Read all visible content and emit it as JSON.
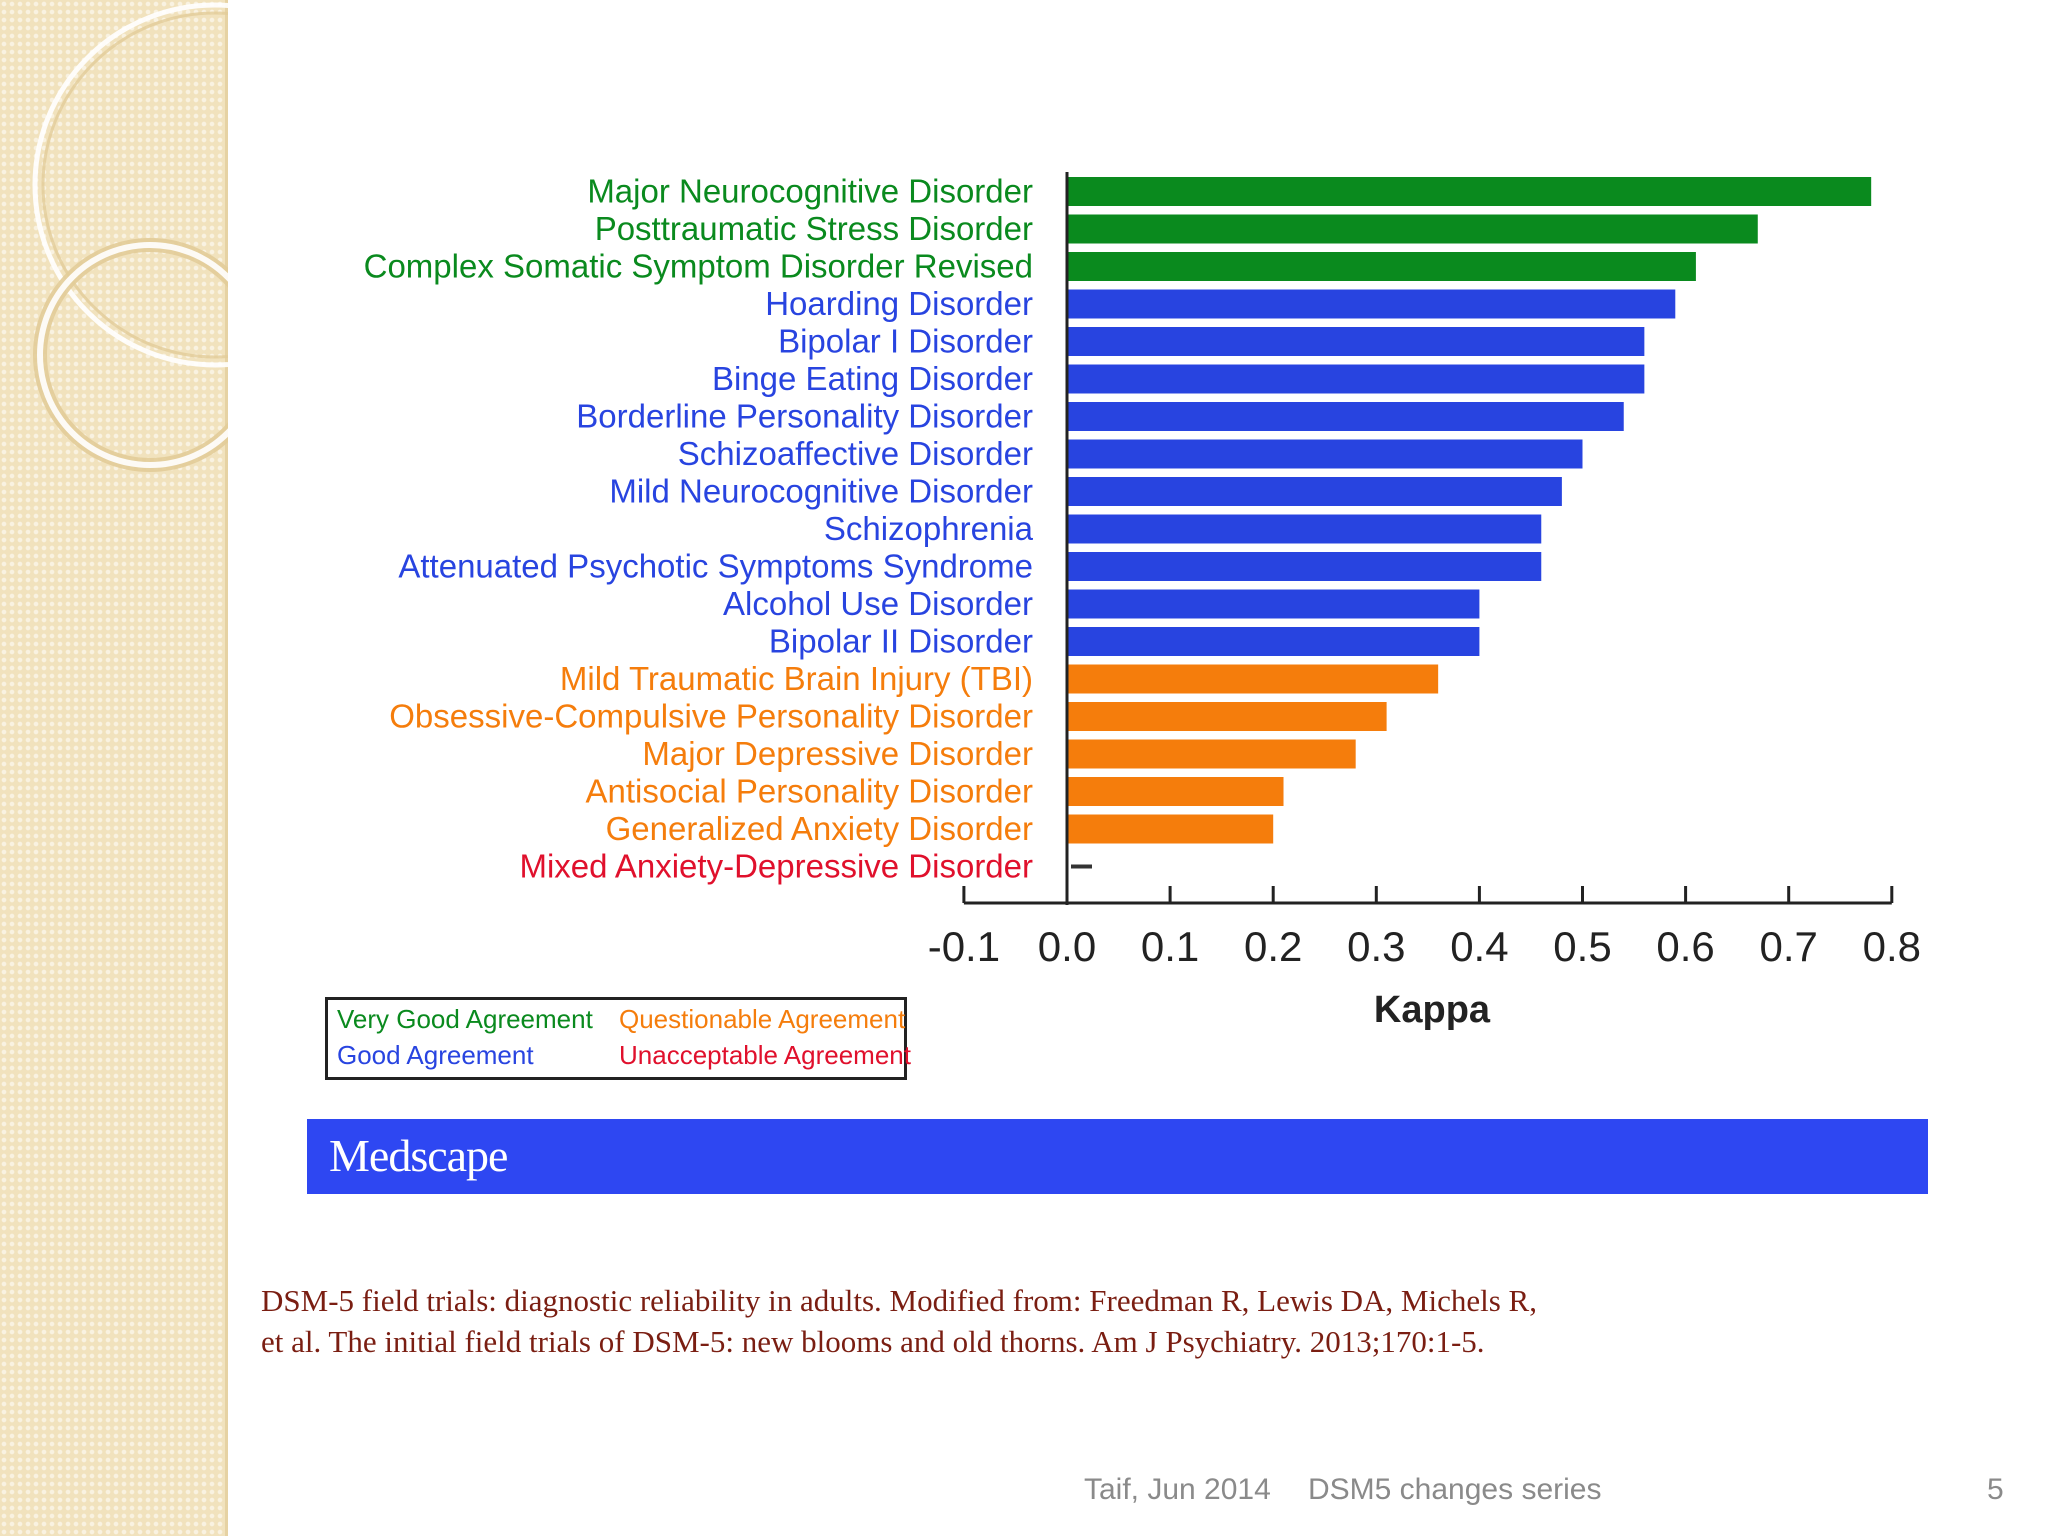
{
  "colors": {
    "very_good": "#0a8a1e",
    "good": "#2844e0",
    "questionable": "#f57d0c",
    "unacceptable": "#e0102c",
    "medscape_bar": "#2e47f2"
  },
  "chart_data": {
    "type": "bar",
    "orientation": "horizontal",
    "xlabel": "Kappa",
    "xlim": [
      -0.1,
      0.8
    ],
    "ticks": [
      "-0.1",
      "0.0",
      "0.1",
      "0.2",
      "0.3",
      "0.4",
      "0.5",
      "0.6",
      "0.7",
      "0.8"
    ],
    "categories": [
      {
        "label": "Major Neurocognitive Disorder",
        "value": 0.78,
        "group": "very_good"
      },
      {
        "label": "Posttraumatic Stress Disorder",
        "value": 0.67,
        "group": "very_good"
      },
      {
        "label": "Complex Somatic Symptom Disorder Revised",
        "value": 0.61,
        "group": "very_good"
      },
      {
        "label": "Hoarding Disorder",
        "value": 0.59,
        "group": "good"
      },
      {
        "label": "Bipolar I Disorder",
        "value": 0.56,
        "group": "good"
      },
      {
        "label": "Binge Eating Disorder",
        "value": 0.56,
        "group": "good"
      },
      {
        "label": "Borderline Personality Disorder",
        "value": 0.54,
        "group": "good"
      },
      {
        "label": "Schizoaffective Disorder",
        "value": 0.5,
        "group": "good"
      },
      {
        "label": "Mild Neurocognitive Disorder",
        "value": 0.48,
        "group": "good"
      },
      {
        "label": "Schizophrenia",
        "value": 0.46,
        "group": "good"
      },
      {
        "label": "Attenuated Psychotic Symptoms Syndrome",
        "value": 0.46,
        "group": "good"
      },
      {
        "label": "Alcohol Use Disorder",
        "value": 0.4,
        "group": "good"
      },
      {
        "label": "Bipolar II Disorder",
        "value": 0.4,
        "group": "good"
      },
      {
        "label": "Mild Traumatic Brain Injury (TBI)",
        "value": 0.36,
        "group": "questionable"
      },
      {
        "label": "Obsessive-Compulsive Personality Disorder",
        "value": 0.31,
        "group": "questionable"
      },
      {
        "label": "Major Depressive Disorder",
        "value": 0.28,
        "group": "questionable"
      },
      {
        "label": "Antisocial Personality Disorder",
        "value": 0.21,
        "group": "questionable"
      },
      {
        "label": "Generalized Anxiety Disorder",
        "value": 0.2,
        "group": "questionable"
      },
      {
        "label": "Mixed Anxiety-Depressive Disorder",
        "value": 0.005,
        "group": "unacceptable"
      }
    ]
  },
  "legend": {
    "very_good": "Very Good Agreement",
    "good": "Good Agreement",
    "questionable": "Questionable Agreement",
    "unacceptable": "Unacceptable Agreement"
  },
  "medscape": {
    "logo": "Medscape"
  },
  "caption": {
    "line1": "DSM-5 field trials: diagnostic reliability in adults. Modified from:  Freedman R, Lewis DA, Michels R,",
    "line2": "et al. The initial field trials of DSM-5: new blooms and old thorns. Am J Psychiatry. 2013;170:1-5."
  },
  "footer": {
    "date": "Taif, Jun 2014",
    "series": "DSM5 changes series",
    "page": "5"
  }
}
